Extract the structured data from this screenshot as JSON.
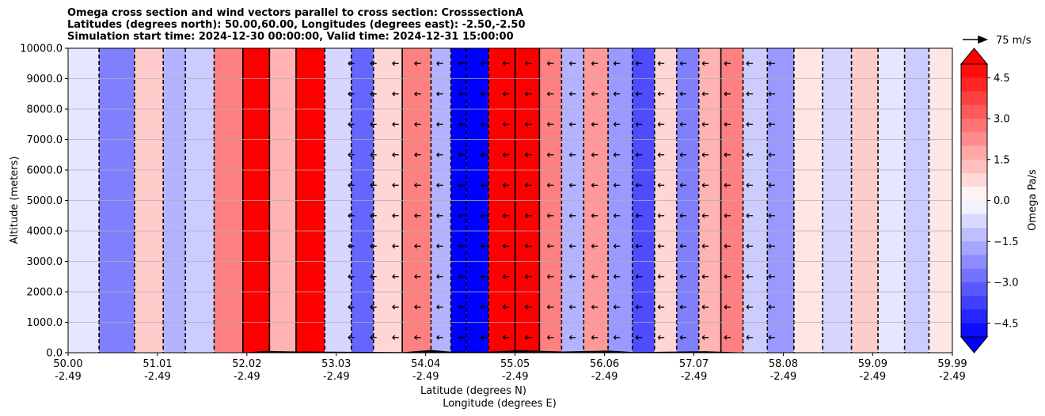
{
  "title_lines": [
    "Omega cross section and wind vectors parallel to cross section: CrosssectionA",
    "Latitudes (degrees north): 50.00,60.00, Longitudes (degrees east): -2.50,-2.50",
    "Simulation start time: 2024-12-30 00:00:00, Valid time: 2024-12-31 15:00:00"
  ],
  "chart_data": {
    "type": "heatmap",
    "ylabel": "Altitude (meters)",
    "xlabel_lines": [
      "Latitude (degrees N)",
      "Longitude (degrees E)"
    ],
    "ylim": [
      0,
      10000
    ],
    "yticks": [
      "0.0",
      "1000.0",
      "2000.0",
      "3000.0",
      "4000.0",
      "5000.0",
      "6000.0",
      "7000.0",
      "8000.0",
      "9000.0",
      "10000.0"
    ],
    "x_range": [
      50.0,
      59.99
    ],
    "xticks": [
      {
        "lat": "50.00",
        "lon": "-2.49"
      },
      {
        "lat": "51.01",
        "lon": "-2.49"
      },
      {
        "lat": "52.02",
        "lon": "-2.49"
      },
      {
        "lat": "53.03",
        "lon": "-2.49"
      },
      {
        "lat": "54.04",
        "lon": "-2.49"
      },
      {
        "lat": "55.05",
        "lon": "-2.49"
      },
      {
        "lat": "56.06",
        "lon": "-2.49"
      },
      {
        "lat": "57.07",
        "lon": "-2.49"
      },
      {
        "lat": "58.08",
        "lon": "-2.49"
      },
      {
        "lat": "59.09",
        "lon": "-2.49"
      },
      {
        "lat": "59.99",
        "lon": "-2.49"
      }
    ],
    "grid": "horizontal",
    "colorbar": {
      "label": "Omega Pa/s",
      "range": [
        -5.0,
        5.0
      ],
      "ticks": [
        "4.5",
        "3.0",
        "1.5",
        "0.0",
        "−1.5",
        "−3.0",
        "−4.5"
      ],
      "extend": "both",
      "colormap": "bwr"
    },
    "quiver_key": "75 m/s",
    "omega_columns": [
      {
        "lat": 50.15,
        "value": -0.5
      },
      {
        "lat": 50.55,
        "value": -2.5
      },
      {
        "lat": 50.95,
        "value": 1.0
      },
      {
        "lat": 51.2,
        "value": -1.5
      },
      {
        "lat": 51.45,
        "value": -1.0
      },
      {
        "lat": 51.85,
        "value": 2.5
      },
      {
        "lat": 52.1,
        "value": 5.0
      },
      {
        "lat": 52.45,
        "value": 1.5
      },
      {
        "lat": 52.7,
        "value": 5.0
      },
      {
        "lat": 53.1,
        "value": -0.8
      },
      {
        "lat": 53.3,
        "value": -3.0
      },
      {
        "lat": 53.6,
        "value": 0.8
      },
      {
        "lat": 53.95,
        "value": 2.5
      },
      {
        "lat": 54.25,
        "value": -1.5
      },
      {
        "lat": 54.4,
        "value": -5.0
      },
      {
        "lat": 54.6,
        "value": -5.0
      },
      {
        "lat": 54.9,
        "value": 5.0
      },
      {
        "lat": 55.2,
        "value": 5.0
      },
      {
        "lat": 55.45,
        "value": 2.5
      },
      {
        "lat": 55.7,
        "value": -1.5
      },
      {
        "lat": 55.95,
        "value": 2.0
      },
      {
        "lat": 56.25,
        "value": -2.0
      },
      {
        "lat": 56.5,
        "value": -3.5
      },
      {
        "lat": 56.75,
        "value": 0.8
      },
      {
        "lat": 57.0,
        "value": -2.5
      },
      {
        "lat": 57.25,
        "value": 1.5
      },
      {
        "lat": 57.5,
        "value": 2.5
      },
      {
        "lat": 57.75,
        "value": -1.0
      },
      {
        "lat": 58.05,
        "value": -2.0
      },
      {
        "lat": 58.35,
        "value": 0.5
      },
      {
        "lat": 58.7,
        "value": -0.8
      },
      {
        "lat": 59.0,
        "value": 1.0
      },
      {
        "lat": 59.3,
        "value": -0.5
      },
      {
        "lat": 59.6,
        "value": -1.0
      },
      {
        "lat": 59.85,
        "value": 0.5
      }
    ]
  },
  "colors": {
    "positive_max": "#ff0000",
    "negative_max": "#0000ff",
    "neutral": "#ffffff",
    "grid": "#b0b0b0"
  }
}
